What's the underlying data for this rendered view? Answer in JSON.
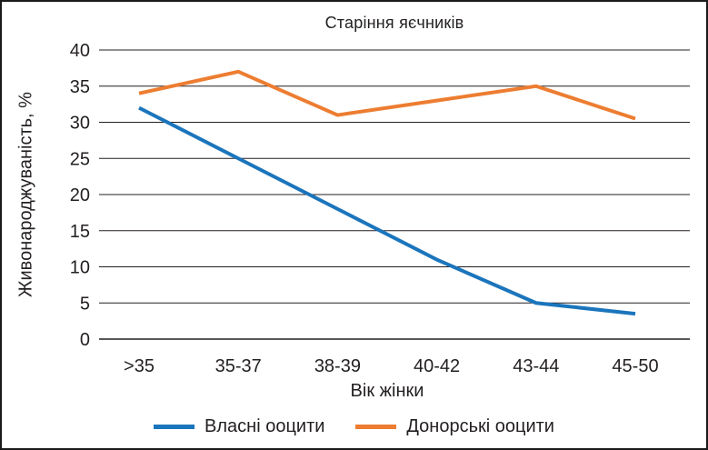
{
  "window": {
    "background": "#ffffff",
    "border_color": "#1a1a1a"
  },
  "chart_data": {
    "type": "line",
    "title": "Старіння яєчників",
    "xlabel": "Вік жінки",
    "ylabel": "Живонароджуваність, %",
    "categories": [
      ">35",
      "35-37",
      "38-39",
      "40-42",
      "43-44",
      "45-50"
    ],
    "series": [
      {
        "name": "Власні ооцити",
        "color": "#1b75bc",
        "values": [
          32,
          25,
          18,
          11,
          5,
          3.5
        ]
      },
      {
        "name": "Донорські ооцити",
        "color": "#ed7d31",
        "values": [
          34,
          37,
          31,
          33,
          35,
          30.5
        ]
      }
    ],
    "ylim": [
      0,
      40
    ],
    "ytick_step": 5,
    "yticks": [
      0,
      5,
      10,
      15,
      20,
      25,
      30,
      35,
      40
    ],
    "grid": "horizontal",
    "legend_position": "bottom",
    "text_color": "#231f20",
    "grid_color": "#231f20",
    "line_width": 4
  }
}
